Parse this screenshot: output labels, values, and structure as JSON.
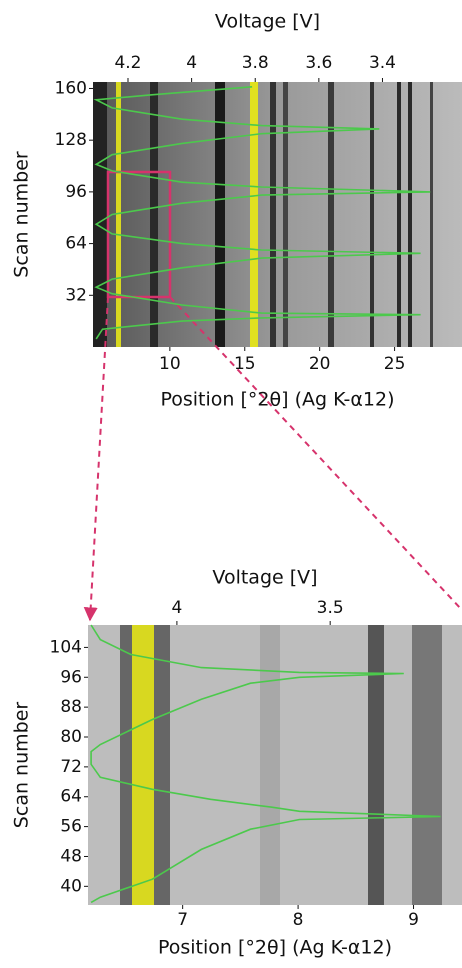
{
  "chart_data": [
    {
      "type": "line",
      "x_label": "Position [°2θ] (Ag K-α12)",
      "x2_label": "Voltage [V]",
      "y_label": "Scan number",
      "xlim": [
        4.87,
        29.5
      ],
      "xticks": [
        10,
        15,
        20,
        25
      ],
      "x2lim": [
        4.31,
        3.15
      ],
      "x2ticks": [
        4.2,
        4,
        3.8,
        3.6,
        3.4
      ],
      "ylim": [
        0,
        164
      ],
      "yticks": [
        32,
        64,
        96,
        128,
        160
      ],
      "series": [
        {
          "color": "#4cc94c",
          "axis": "x2",
          "x": [
            4.3,
            4.28,
            4.03,
            3.78,
            3.28,
            3.78,
            4.03,
            4.25,
            4.3,
            4.25,
            4.03,
            3.78,
            3.28,
            3.78,
            4.03,
            4.25,
            4.3,
            4.25,
            4.03,
            3.78,
            3.25,
            3.78,
            4.03,
            4.25,
            4.3,
            4.25,
            4.03,
            3.78,
            3.41,
            3.78,
            4.03,
            4.25,
            4.3,
            4.13,
            3.81
          ],
          "y": [
            5,
            11,
            16,
            18,
            20,
            21,
            26,
            33,
            37,
            42,
            49,
            55,
            58,
            60,
            64,
            70,
            76,
            82,
            89,
            94,
            96,
            99,
            102,
            109,
            113,
            119,
            126,
            132,
            135,
            137,
            141,
            148,
            153,
            156,
            161
          ]
        }
      ]
    },
    {
      "type": "line",
      "x_label": "Position [°2θ] (Ag K-α12)",
      "x2_label": "Voltage [V]",
      "y_label": "Scan number",
      "xlim": [
        6.18,
        9.42
      ],
      "xticks": [
        7,
        8,
        9
      ],
      "x2lim": [
        4.29,
        3.07
      ],
      "x2ticks": [
        4,
        3.5
      ],
      "ylim": [
        35,
        110
      ],
      "yticks": [
        40,
        48,
        56,
        64,
        72,
        80,
        88,
        96,
        104
      ],
      "series": [
        {
          "color": "#4cc94c",
          "axis": "x2",
          "x": [
            4.28,
            4.25,
            4.15,
            3.92,
            3.6,
            3.26,
            3.6,
            3.76,
            3.92,
            4.08,
            4.25,
            4.28,
            4.28,
            4.25,
            4.08,
            3.89,
            3.69,
            3.6,
            3.14,
            3.6,
            3.76,
            3.92,
            4.08,
            4.25,
            4.28
          ],
          "y": [
            110,
            106.1,
            102.1,
            98.6,
            97.3,
            97.0,
            96.0,
            94.4,
            90.1,
            84.7,
            78.0,
            76.1,
            72.7,
            69.2,
            66.0,
            63.3,
            61.2,
            60.1,
            58.7,
            57.9,
            55.3,
            49.9,
            41.9,
            37.1,
            35.7
          ]
        }
      ]
    }
  ]
}
